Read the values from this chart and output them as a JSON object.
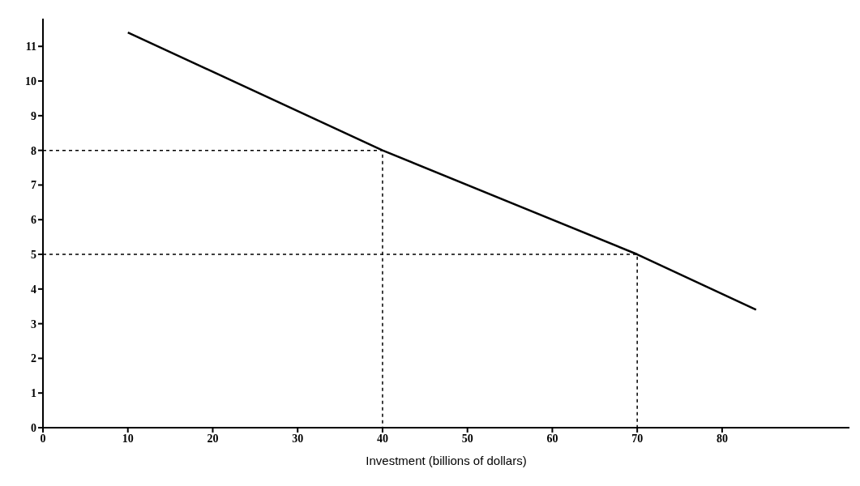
{
  "chart_data": {
    "type": "line",
    "xlabel": "Investment (billions of dollars)",
    "xlim": [
      0,
      95
    ],
    "ylim": [
      0,
      11.8
    ],
    "xticks": [
      0,
      10,
      20,
      30,
      40,
      50,
      60,
      70,
      80
    ],
    "yticks": [
      0,
      1,
      2,
      3,
      4,
      5,
      6,
      7,
      8,
      9,
      10,
      11
    ],
    "grid": false,
    "series": [
      {
        "color": "#000000",
        "x": [
          10,
          40,
          70,
          84
        ],
        "values": [
          11.4,
          8,
          5,
          3.4
        ],
        "line_style": "solid"
      },
      {
        "color": "#000000",
        "x": [
          0,
          40,
          40
        ],
        "values": [
          8,
          8,
          0
        ],
        "line_style": "dashed"
      },
      {
        "color": "#000000",
        "x": [
          0,
          70,
          70
        ],
        "values": [
          5,
          5,
          0
        ],
        "line_style": "dashed"
      }
    ]
  }
}
